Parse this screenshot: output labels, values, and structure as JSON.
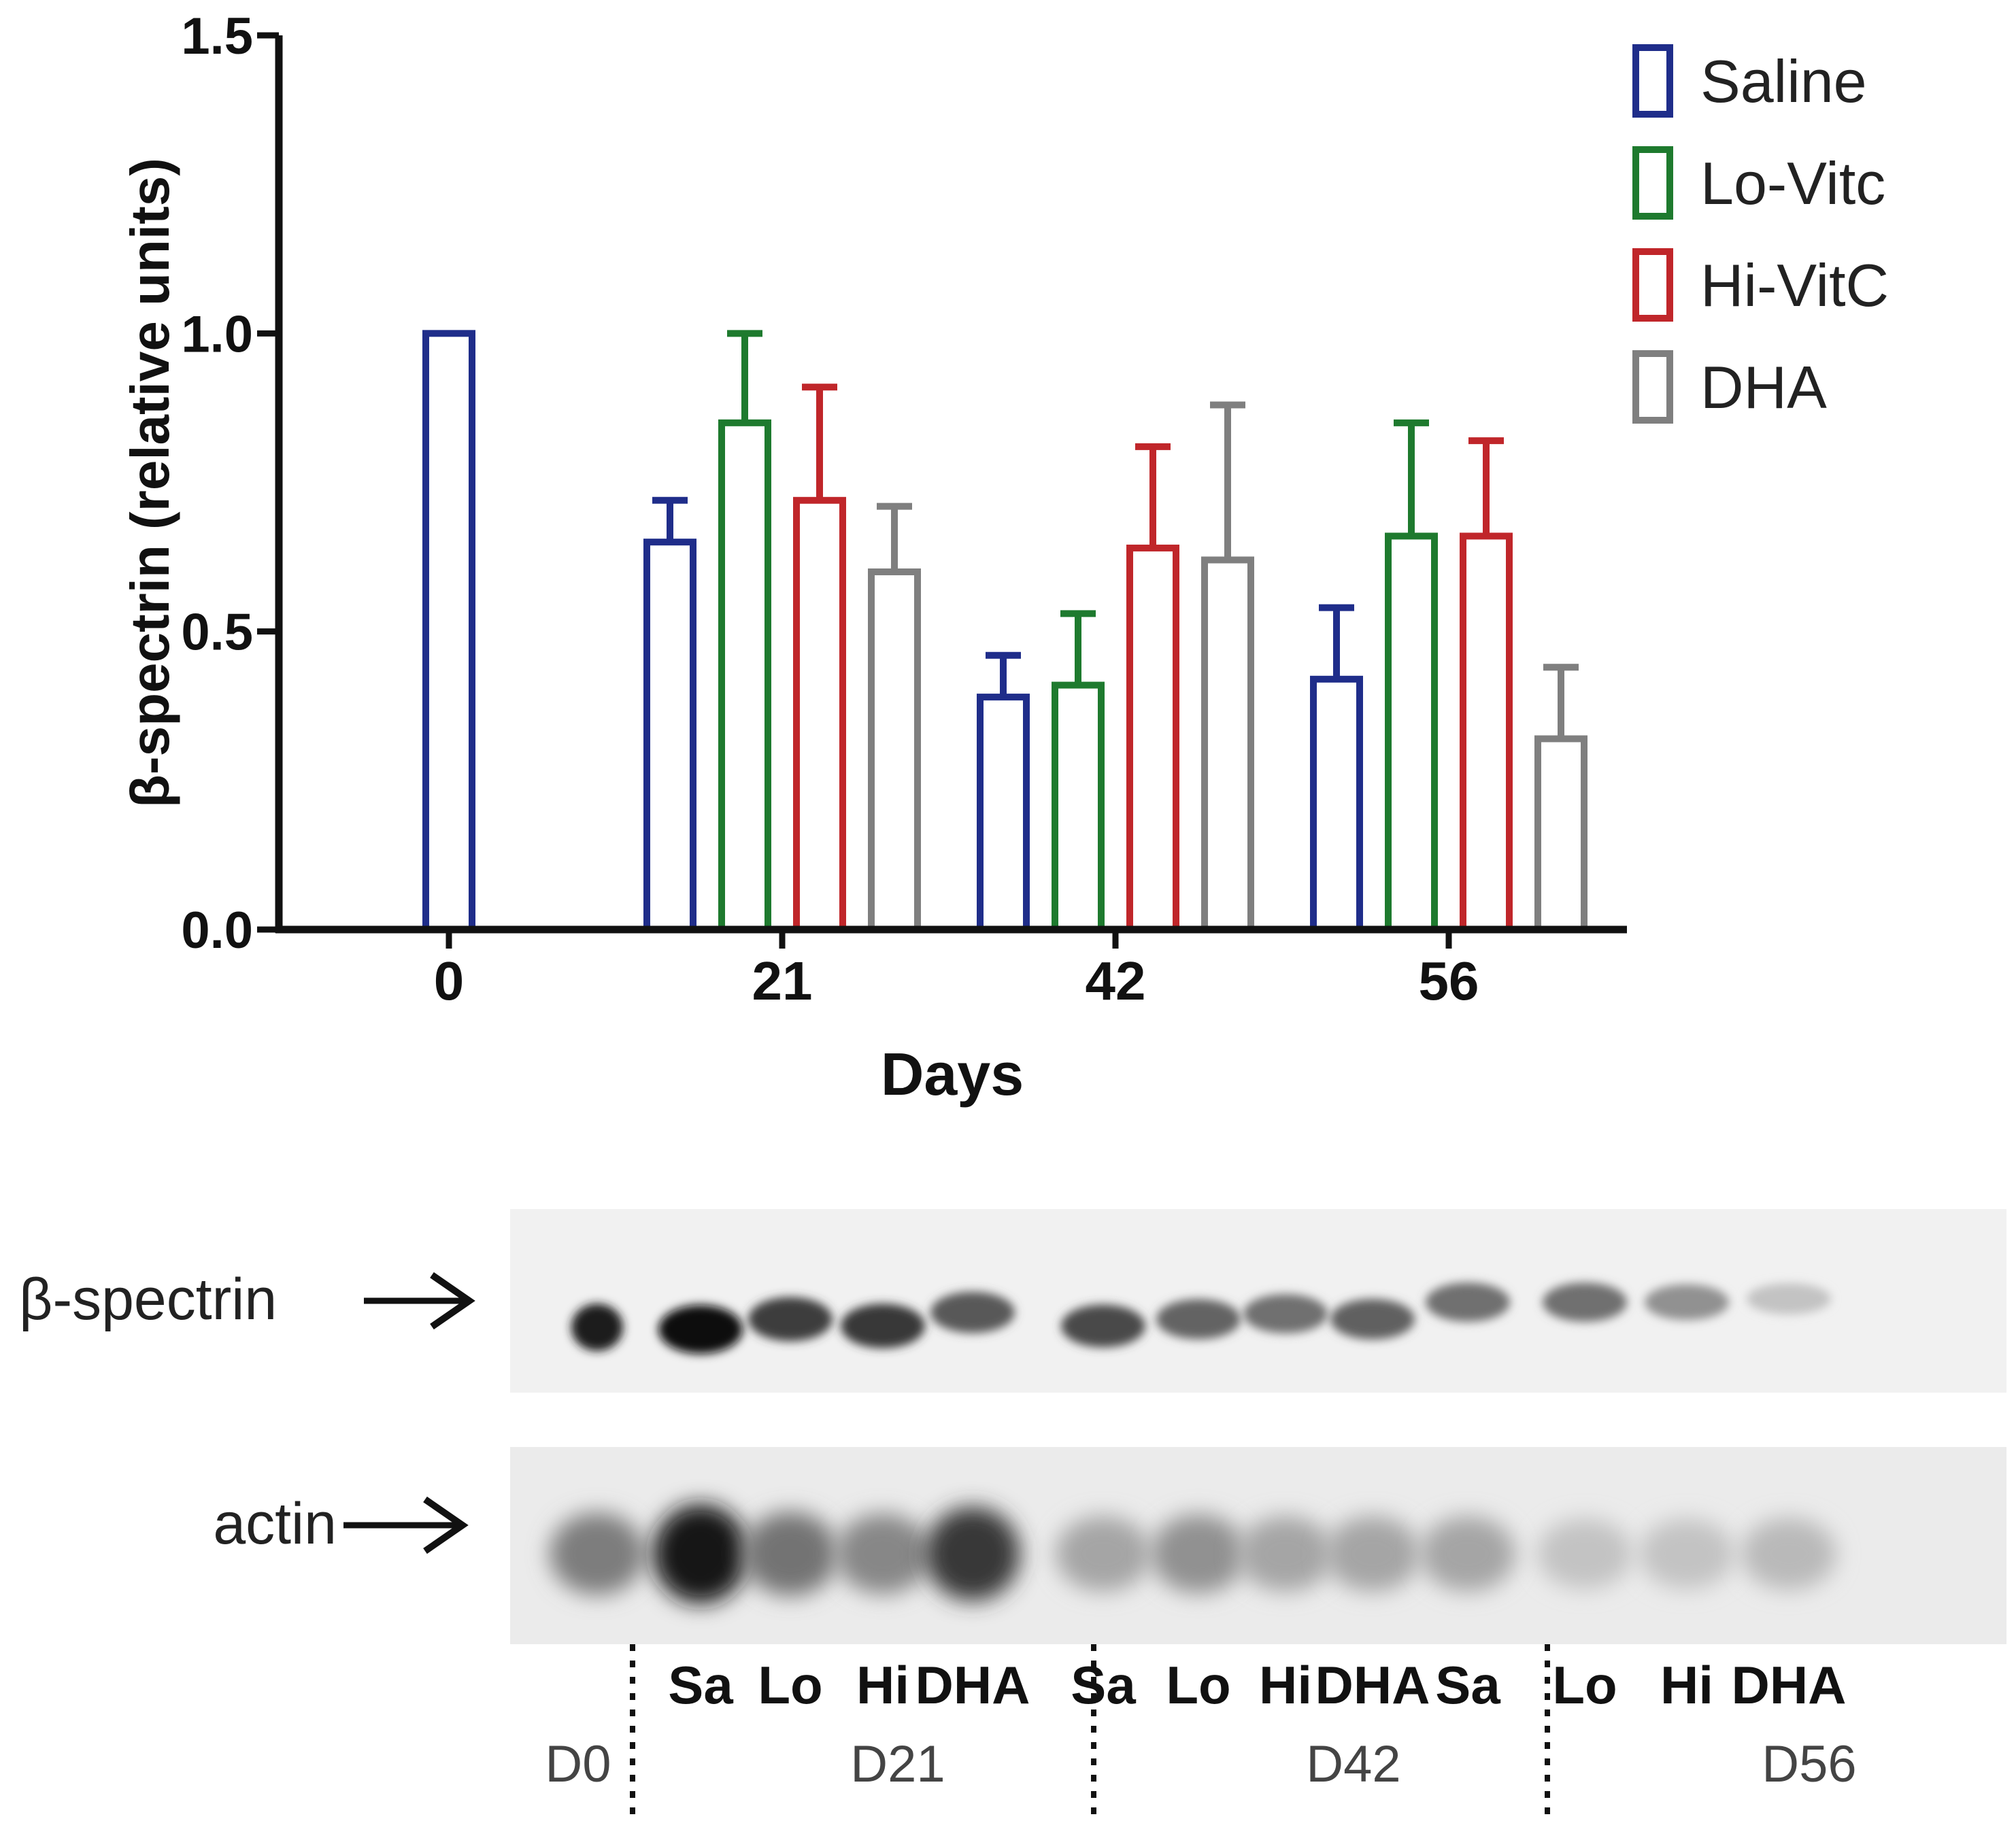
{
  "chart_data": {
    "type": "bar",
    "xlabel": "Days",
    "ylabel": "β-spectrin (relative units)",
    "ylim": [
      0,
      1.5
    ],
    "yticks": [
      "0.0",
      "0.5",
      "1.0",
      "1.5"
    ],
    "categories": [
      "0",
      "21",
      "42",
      "56"
    ],
    "legend_position": "top-right",
    "grid": false,
    "series": [
      {
        "name": "Saline",
        "color": "#1f2d8a",
        "values": [
          1.0,
          0.65,
          0.39,
          0.42
        ],
        "errors": [
          0.0,
          0.07,
          0.07,
          0.12
        ]
      },
      {
        "name": "Lo-Vitc",
        "color": "#1e7a2e",
        "values": [
          null,
          0.85,
          0.41,
          0.66
        ],
        "errors": [
          null,
          0.15,
          0.12,
          0.19
        ]
      },
      {
        "name": "Hi-VitC",
        "color": "#c0262a",
        "values": [
          null,
          0.72,
          0.64,
          0.66
        ],
        "errors": [
          null,
          0.19,
          0.17,
          0.16
        ]
      },
      {
        "name": "DHA",
        "color": "#7f7f7f",
        "values": [
          null,
          0.6,
          0.62,
          0.32
        ],
        "errors": [
          null,
          0.11,
          0.26,
          0.12
        ]
      }
    ]
  },
  "blot": {
    "band_labels": [
      "β-spectrin",
      "actin"
    ],
    "lane_labels": [
      "Sa",
      "Lo",
      "Hi",
      "DHA",
      "Sa",
      "Lo",
      "Hi",
      "DHA",
      "Sa",
      "Lo",
      "Hi",
      "DHA"
    ],
    "group_labels": [
      "D0",
      "D21",
      "D42",
      "D56"
    ]
  }
}
